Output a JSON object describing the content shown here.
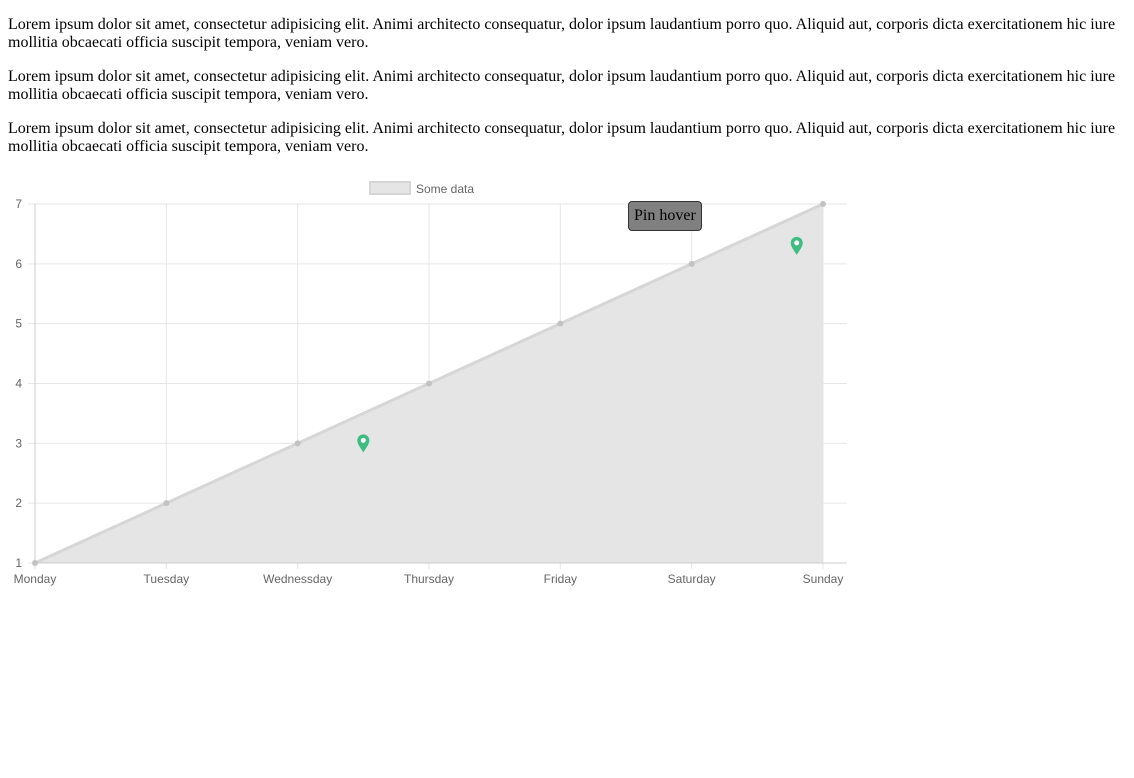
{
  "paragraphs": [
    "Lorem ipsum dolor sit amet, consectetur adipisicing elit. Animi architecto consequatur, dolor ipsum laudantium porro quo. Aliquid aut, corporis dicta exercitationem hic iure mollitia obcaecati officia suscipit tempora, veniam vero.",
    "Lorem ipsum dolor sit amet, consectetur adipisicing elit. Animi architecto consequatur, dolor ipsum laudantium porro quo. Aliquid aut, corporis dicta exercitationem hic iure mollitia obcaecati officia suscipit tempora, veniam vero.",
    "Lorem ipsum dolor sit amet, consectetur adipisicing elit. Animi architecto consequatur, dolor ipsum laudantium porro quo. Aliquid aut, corporis dicta exercitationem hic iure mollitia obcaecati officia suscipit tempora, veniam vero."
  ],
  "chart_data": {
    "type": "area",
    "categories": [
      "Monday",
      "Tuesday",
      "Wednessday",
      "Thursday",
      "Friday",
      "Saturday",
      "Sunday"
    ],
    "series": [
      {
        "name": "Some data",
        "values": [
          1,
          2,
          3,
          4,
          5,
          6,
          7
        ]
      }
    ],
    "ylim": [
      1,
      7
    ],
    "yticks": [
      "1",
      "2",
      "3",
      "4",
      "5",
      "6",
      "7"
    ],
    "grid": true,
    "legend_position": "top-center",
    "colors": {
      "fill": "#e5e5e5",
      "line": "#d6d6d6",
      "point": "#c2c2c2",
      "grid": "#e6e6e6",
      "axis": "#cccccc",
      "pin": "#3dbd82"
    },
    "pins": [
      {
        "x": 2.5,
        "y": 3
      },
      {
        "x": 5.8,
        "y": 6.3
      }
    ]
  },
  "tooltip": {
    "text": "Pin hover"
  }
}
